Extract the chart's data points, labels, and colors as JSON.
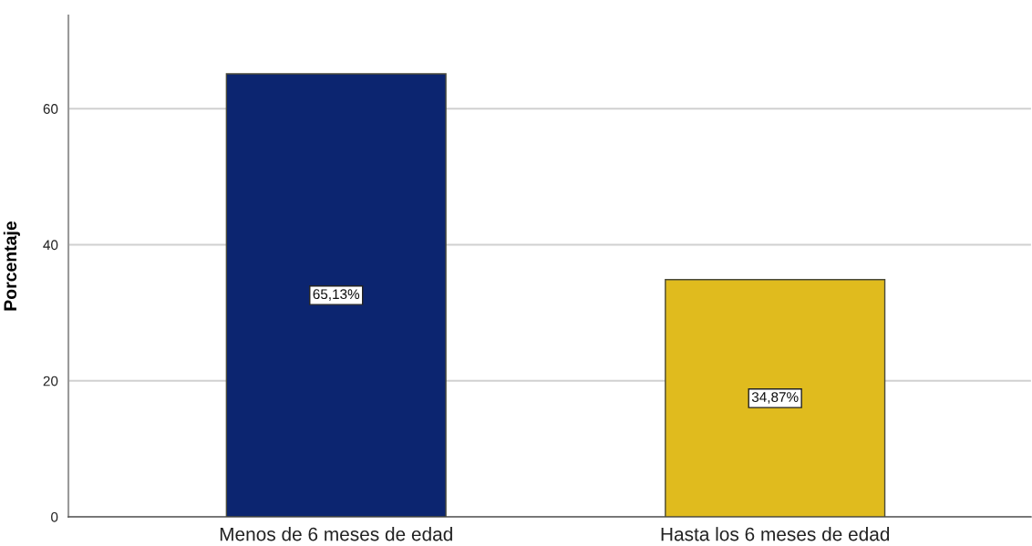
{
  "chart_data": {
    "type": "bar",
    "ylabel": "Porcentaje",
    "categories": [
      "Menos de 6 meses de edad",
      "Hasta los 6 meses de edad"
    ],
    "values": [
      65.13,
      34.87
    ],
    "colors": [
      "#0c2570",
      "#e0bb1e"
    ],
    "value_labels": [
      "65,13%",
      "34,87%"
    ],
    "ylim": [
      0,
      73.7
    ],
    "yticks": [
      0,
      20,
      40,
      60
    ],
    "grid": "y",
    "legend": false
  }
}
